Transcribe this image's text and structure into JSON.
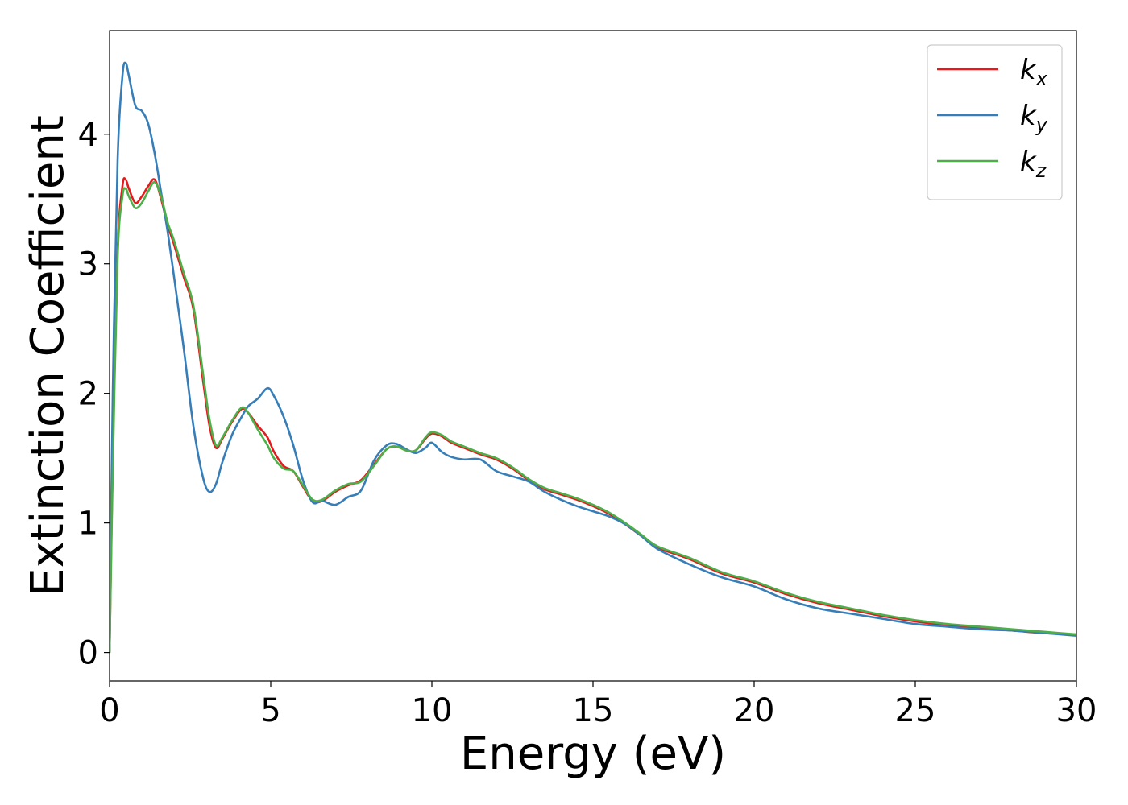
{
  "chart_data": {
    "type": "line",
    "title": "",
    "xlabel": "Energy (eV)",
    "ylabel": "Extinction Coefficient",
    "xlim": [
      0,
      30
    ],
    "ylim": [
      -0.22,
      4.8
    ],
    "xticks": [
      0,
      5,
      10,
      15,
      20,
      25,
      30
    ],
    "yticks": [
      0,
      1,
      2,
      3,
      4
    ],
    "xtick_labels": [
      "0",
      "5",
      "10",
      "15",
      "20",
      "25",
      "30"
    ],
    "ytick_labels": [
      "0",
      "1",
      "2",
      "3",
      "4"
    ],
    "grid": false,
    "legend_position": "top-right",
    "colors": {
      "kx": "#e41a1c",
      "ky": "#377eb8",
      "kz": "#4daf4a"
    },
    "series": [
      {
        "name": "k_x",
        "legend_base": "k",
        "legend_sub": "x",
        "color": "#e41a1c",
        "x": [
          0,
          0.1,
          0.25,
          0.4,
          0.5,
          0.6,
          0.8,
          1.0,
          1.2,
          1.4,
          1.6,
          1.8,
          2.0,
          2.3,
          2.6,
          2.9,
          3.1,
          3.3,
          3.5,
          3.8,
          4.1,
          4.3,
          4.6,
          4.9,
          5.1,
          5.4,
          5.7,
          6.0,
          6.3,
          6.6,
          7.0,
          7.4,
          7.8,
          8.2,
          8.6,
          8.9,
          9.2,
          9.5,
          9.8,
          10.0,
          10.3,
          10.6,
          11.0,
          11.5,
          12.0,
          12.5,
          13.0,
          13.5,
          14.0,
          14.5,
          15.0,
          15.5,
          16.0,
          16.5,
          17.0,
          18.0,
          19.0,
          20.0,
          21.0,
          22.0,
          23.0,
          24.0,
          25.0,
          26.0,
          27.0,
          28.0,
          29.0,
          30.0
        ],
        "y": [
          0,
          1.5,
          3.1,
          3.6,
          3.65,
          3.58,
          3.47,
          3.52,
          3.6,
          3.65,
          3.5,
          3.3,
          3.15,
          2.9,
          2.65,
          2.1,
          1.75,
          1.58,
          1.65,
          1.78,
          1.88,
          1.85,
          1.75,
          1.66,
          1.55,
          1.44,
          1.4,
          1.28,
          1.17,
          1.17,
          1.24,
          1.29,
          1.33,
          1.45,
          1.57,
          1.59,
          1.56,
          1.56,
          1.65,
          1.69,
          1.67,
          1.62,
          1.58,
          1.53,
          1.49,
          1.42,
          1.33,
          1.26,
          1.22,
          1.18,
          1.13,
          1.07,
          0.99,
          0.9,
          0.81,
          0.72,
          0.61,
          0.54,
          0.45,
          0.38,
          0.33,
          0.28,
          0.24,
          0.21,
          0.19,
          0.17,
          0.15,
          0.14
        ]
      },
      {
        "name": "k_y",
        "legend_base": "k",
        "legend_sub": "y",
        "color": "#377eb8",
        "x": [
          0,
          0.1,
          0.25,
          0.4,
          0.5,
          0.6,
          0.8,
          1.0,
          1.2,
          1.4,
          1.6,
          1.8,
          2.0,
          2.3,
          2.6,
          2.9,
          3.1,
          3.3,
          3.5,
          3.8,
          4.1,
          4.3,
          4.6,
          4.9,
          5.1,
          5.4,
          5.7,
          6.0,
          6.3,
          6.6,
          7.0,
          7.4,
          7.8,
          8.2,
          8.6,
          8.9,
          9.2,
          9.5,
          9.8,
          10.0,
          10.3,
          10.6,
          11.0,
          11.5,
          12.0,
          12.5,
          13.0,
          13.5,
          14.0,
          14.5,
          15.0,
          15.5,
          16.0,
          16.5,
          17.0,
          18.0,
          19.0,
          20.0,
          21.0,
          22.0,
          23.0,
          24.0,
          25.0,
          26.0,
          27.0,
          28.0,
          29.0,
          30.0
        ],
        "y": [
          0,
          2.0,
          3.8,
          4.45,
          4.55,
          4.45,
          4.22,
          4.18,
          4.08,
          3.85,
          3.55,
          3.25,
          2.9,
          2.35,
          1.75,
          1.35,
          1.24,
          1.3,
          1.47,
          1.68,
          1.82,
          1.9,
          1.96,
          2.04,
          1.98,
          1.82,
          1.6,
          1.33,
          1.16,
          1.17,
          1.14,
          1.2,
          1.25,
          1.48,
          1.6,
          1.61,
          1.57,
          1.54,
          1.58,
          1.62,
          1.55,
          1.51,
          1.49,
          1.49,
          1.4,
          1.36,
          1.32,
          1.24,
          1.18,
          1.13,
          1.09,
          1.05,
          0.99,
          0.9,
          0.8,
          0.68,
          0.58,
          0.51,
          0.41,
          0.34,
          0.3,
          0.26,
          0.22,
          0.2,
          0.18,
          0.17,
          0.15,
          0.13
        ]
      },
      {
        "name": "k_z",
        "legend_base": "k",
        "legend_sub": "z",
        "color": "#4daf4a",
        "x": [
          0,
          0.1,
          0.25,
          0.4,
          0.5,
          0.6,
          0.8,
          1.0,
          1.2,
          1.4,
          1.6,
          1.8,
          2.0,
          2.3,
          2.6,
          2.9,
          3.1,
          3.3,
          3.5,
          3.8,
          4.1,
          4.3,
          4.6,
          4.9,
          5.1,
          5.4,
          5.7,
          6.0,
          6.3,
          6.6,
          7.0,
          7.4,
          7.8,
          8.2,
          8.6,
          8.9,
          9.2,
          9.5,
          9.8,
          10.0,
          10.3,
          10.6,
          11.0,
          11.5,
          12.0,
          12.5,
          13.0,
          13.5,
          14.0,
          14.5,
          15.0,
          15.5,
          16.0,
          16.5,
          17.0,
          18.0,
          19.0,
          20.0,
          21.0,
          22.0,
          23.0,
          24.0,
          25.0,
          26.0,
          27.0,
          28.0,
          29.0,
          30.0
        ],
        "y": [
          0,
          1.4,
          3.05,
          3.52,
          3.58,
          3.52,
          3.43,
          3.47,
          3.56,
          3.63,
          3.52,
          3.32,
          3.18,
          2.93,
          2.68,
          2.15,
          1.8,
          1.6,
          1.66,
          1.79,
          1.89,
          1.85,
          1.72,
          1.6,
          1.5,
          1.42,
          1.4,
          1.29,
          1.18,
          1.18,
          1.25,
          1.3,
          1.32,
          1.44,
          1.57,
          1.59,
          1.56,
          1.56,
          1.66,
          1.7,
          1.68,
          1.63,
          1.59,
          1.54,
          1.5,
          1.43,
          1.34,
          1.27,
          1.23,
          1.19,
          1.14,
          1.08,
          1.0,
          0.91,
          0.82,
          0.73,
          0.62,
          0.55,
          0.46,
          0.39,
          0.34,
          0.29,
          0.25,
          0.22,
          0.2,
          0.18,
          0.16,
          0.14
        ]
      }
    ]
  }
}
